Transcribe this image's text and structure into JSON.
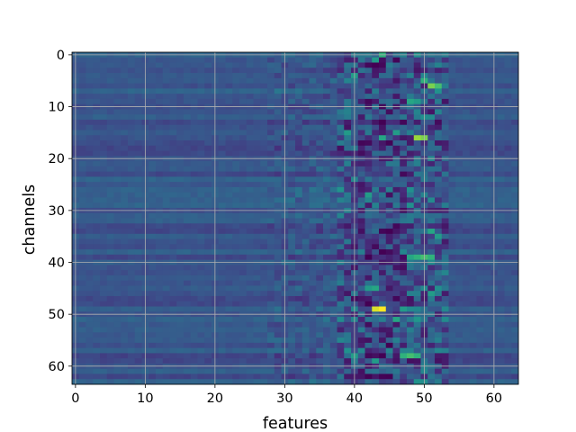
{
  "chart_data": {
    "type": "heatmap",
    "title": "",
    "xlabel": "features",
    "ylabel": "channels",
    "rows": 64,
    "cols": 64,
    "xlim": [
      -0.5,
      63.5
    ],
    "ylim": [
      63.5,
      -0.5
    ],
    "y_axis_inverted": true,
    "grid": true,
    "colormap": "viridis",
    "background_color": "#3f4f8b",
    "x_ticks": [
      0,
      10,
      20,
      30,
      40,
      50,
      60
    ],
    "y_ticks": [
      0,
      10,
      20,
      30,
      40,
      50,
      60
    ],
    "value_range": [
      0,
      1
    ],
    "baseline_value": 0.27,
    "description_of_cells": "Mostly uniform mid-blue values (~0.2-0.35) with horizontal banding; a vertical band of high variance between features ~38-53, containing dark (low) and bright green/yellow (high) cells.",
    "notable_cells": [
      {
        "row": 0,
        "col": 44,
        "value": 0.65
      },
      {
        "row": 1,
        "col": 43,
        "value": 0.55
      },
      {
        "row": 2,
        "col": 42,
        "value": 0.02
      },
      {
        "row": 2,
        "col": 43,
        "value": 0.0
      },
      {
        "row": 2,
        "col": 44,
        "value": 0.02
      },
      {
        "row": 4,
        "col": 40,
        "value": 0.55
      },
      {
        "row": 5,
        "col": 50,
        "value": 0.65
      },
      {
        "row": 6,
        "col": 51,
        "value": 0.8
      },
      {
        "row": 6,
        "col": 52,
        "value": 0.7
      },
      {
        "row": 9,
        "col": 48,
        "value": 0.6
      },
      {
        "row": 9,
        "col": 49,
        "value": 0.55
      },
      {
        "row": 15,
        "col": 39,
        "value": 0.55
      },
      {
        "row": 15,
        "col": 46,
        "value": 0.55
      },
      {
        "row": 16,
        "col": 44,
        "value": 0.6
      },
      {
        "row": 16,
        "col": 49,
        "value": 0.85
      },
      {
        "row": 16,
        "col": 50,
        "value": 0.8
      },
      {
        "row": 27,
        "col": 42,
        "value": 0.55
      },
      {
        "row": 34,
        "col": 51,
        "value": 0.6
      },
      {
        "row": 35,
        "col": 52,
        "value": 0.55
      },
      {
        "row": 38,
        "col": 44,
        "value": 0.0
      },
      {
        "row": 38,
        "col": 45,
        "value": 0.03
      },
      {
        "row": 39,
        "col": 48,
        "value": 0.6
      },
      {
        "row": 39,
        "col": 49,
        "value": 0.65
      },
      {
        "row": 39,
        "col": 50,
        "value": 0.7
      },
      {
        "row": 39,
        "col": 51,
        "value": 0.65
      },
      {
        "row": 45,
        "col": 42,
        "value": 0.55
      },
      {
        "row": 45,
        "col": 43,
        "value": 0.6
      },
      {
        "row": 46,
        "col": 51,
        "value": 0.55
      },
      {
        "row": 49,
        "col": 43,
        "value": 0.95
      },
      {
        "row": 49,
        "col": 44,
        "value": 1.0
      },
      {
        "row": 49,
        "col": 47,
        "value": 0.55
      },
      {
        "row": 51,
        "col": 46,
        "value": 0.6
      },
      {
        "row": 58,
        "col": 47,
        "value": 0.65
      },
      {
        "row": 58,
        "col": 48,
        "value": 0.7
      },
      {
        "row": 58,
        "col": 49,
        "value": 0.65
      },
      {
        "row": 58,
        "col": 40,
        "value": 0.55
      },
      {
        "row": 59,
        "col": 43,
        "value": 0.55
      }
    ]
  }
}
